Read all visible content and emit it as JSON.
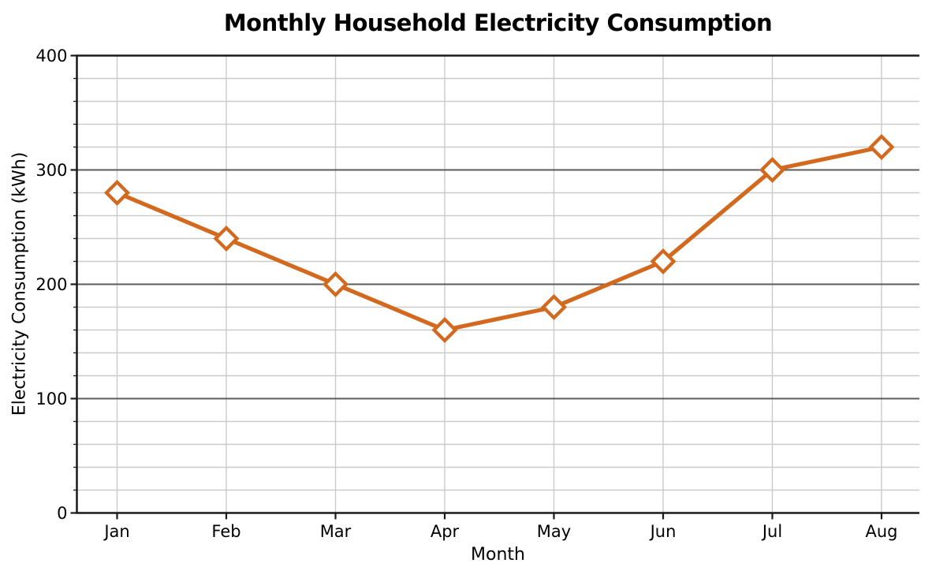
{
  "chart_data": {
    "type": "line",
    "title": "Monthly Household Electricity Consumption",
    "xlabel": "Month",
    "ylabel": "Electricity Consumption (kWh)",
    "categories": [
      "Jan",
      "Feb",
      "Mar",
      "Apr",
      "May",
      "Jun",
      "Jul",
      "Aug"
    ],
    "values": [
      280,
      240,
      200,
      160,
      180,
      220,
      300,
      320
    ],
    "ylim": [
      0,
      400
    ],
    "y_major_ticks": [
      0,
      100,
      200,
      300,
      400
    ],
    "y_minor_step": 20,
    "grid": {
      "major": true,
      "minor": true
    },
    "legend": "none",
    "style": {
      "line_color": "#d2691e",
      "marker": "diamond",
      "marker_fill": "#ffffff",
      "major_grid_color": "#5c5c5c",
      "minor_grid_color": "#cbcbcb",
      "spine_color": "#1a1a1a",
      "background": "#ffffff",
      "text_color": "#000000"
    }
  }
}
